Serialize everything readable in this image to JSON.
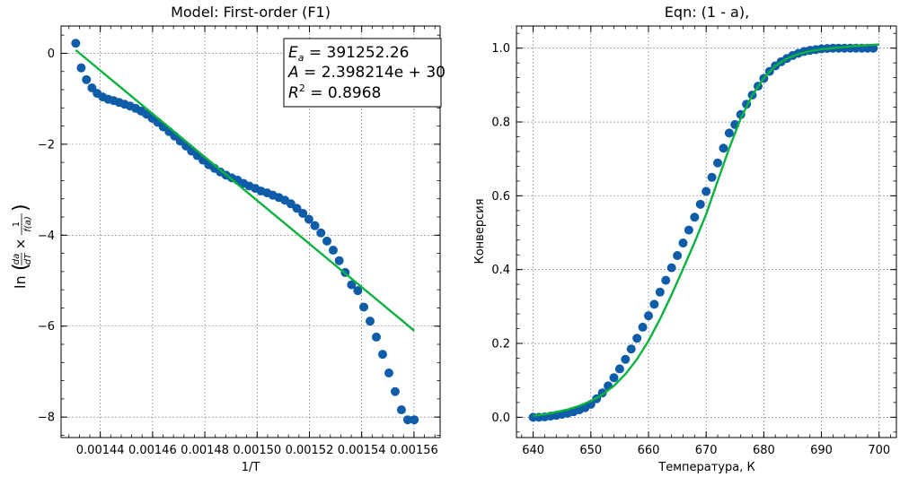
{
  "chart_data": [
    {
      "type": "scatter",
      "title": "Model: First-order (F1)",
      "xlabel": "1/T",
      "ylabel": "ln(da/dT × 1/f(a))",
      "xlim": [
        0.001425,
        0.00157
      ],
      "ylim": [
        -8.45,
        0.6
      ],
      "x_ticks": [
        "0.00144",
        "0.00146",
        "0.00148",
        "0.00150",
        "0.00152",
        "0.00154",
        "0.00156"
      ],
      "x_tick_values": [
        0.00144,
        0.00146,
        0.00148,
        0.0015,
        0.00152,
        0.00154,
        0.00156
      ],
      "y_ticks": [
        "0",
        "−2",
        "−4",
        "−6",
        "−8"
      ],
      "y_tick_values": [
        0,
        -2,
        -4,
        -6,
        -8
      ],
      "grid": true,
      "annotation": {
        "line1_var": "E",
        "line1_sub": "a",
        "line1_value": " = 391252.26",
        "line2_var": "A",
        "line2_value": " = 2.398214e + 30",
        "line3_var": "R",
        "line3_sup": "2",
        "line3_value": " = 0.8968",
        "position": "top-right"
      },
      "series": [
        {
          "kind": "points",
          "color": "#0f5ca8",
          "x": [
            0.0014306,
            0.0014327,
            0.0014347,
            0.0014368,
            0.0014388,
            0.0014409,
            0.001443,
            0.0014451,
            0.0014472,
            0.0014493,
            0.0014514,
            0.0014535,
            0.0014556,
            0.0014577,
            0.0014599,
            0.001462,
            0.0014641,
            0.0014663,
            0.0014684,
            0.0014706,
            0.0014728,
            0.0014749,
            0.0014771,
            0.0014793,
            0.0014815,
            0.0014837,
            0.0014859,
            0.0014881,
            0.0014903,
            0.0014925,
            0.0014948,
            0.001497,
            0.0014993,
            0.0015015,
            0.0015038,
            0.001506,
            0.0015083,
            0.0015106,
            0.0015129,
            0.0015152,
            0.0015175,
            0.0015198,
            0.0015221,
            0.0015244,
            0.0015267,
            0.0015291,
            0.0015314,
            0.0015337,
            0.0015361,
            0.0015385,
            0.0015408,
            0.0015432,
            0.0015456,
            0.001548,
            0.0015504,
            0.0015528,
            0.0015552,
            0.0015576,
            0.0015601
          ],
          "y": [
            0.22,
            -0.32,
            -0.58,
            -0.76,
            -0.88,
            -0.96,
            -1.01,
            -1.04,
            -1.08,
            -1.12,
            -1.16,
            -1.21,
            -1.27,
            -1.34,
            -1.43,
            -1.52,
            -1.62,
            -1.72,
            -1.82,
            -1.93,
            -2.04,
            -2.15,
            -2.25,
            -2.35,
            -2.45,
            -2.53,
            -2.61,
            -2.68,
            -2.74,
            -2.79,
            -2.86,
            -2.92,
            -2.97,
            -3.03,
            -3.07,
            -3.12,
            -3.17,
            -3.23,
            -3.31,
            -3.41,
            -3.52,
            -3.65,
            -3.79,
            -3.95,
            -4.13,
            -4.33,
            -4.56,
            -4.82,
            -5.09,
            -5.22,
            -5.58,
            -5.89,
            -6.24,
            -6.62,
            -7.03,
            -7.44,
            -7.84,
            -8.06,
            -8.06
          ]
        },
        {
          "kind": "line",
          "color": "#0bb23f",
          "x": [
            0.0014306,
            0.0015601
          ],
          "y": [
            0.07,
            -6.1
          ]
        }
      ]
    },
    {
      "type": "scatter",
      "title": "Eqn: (1 - a),",
      "xlabel": "Температура, К",
      "ylabel": "Конверсия",
      "xlim": [
        637.1,
        703.0
      ],
      "ylim": [
        -0.055,
        1.06
      ],
      "x_ticks": [
        "640",
        "650",
        "660",
        "670",
        "680",
        "690",
        "700"
      ],
      "x_tick_values": [
        640,
        650,
        660,
        670,
        680,
        690,
        700
      ],
      "y_ticks": [
        "0.0",
        "0.2",
        "0.4",
        "0.6",
        "0.8",
        "1.0"
      ],
      "y_tick_values": [
        0.0,
        0.2,
        0.4,
        0.6,
        0.8,
        1.0
      ],
      "grid": true,
      "series": [
        {
          "kind": "points",
          "color": "#0f5ca8",
          "x": [
            640,
            641,
            642,
            643,
            644,
            645,
            646,
            647,
            648,
            649,
            650,
            651,
            652,
            653,
            654,
            655,
            656,
            657,
            658,
            659,
            660,
            661,
            662,
            663,
            664,
            665,
            666,
            667,
            668,
            669,
            670,
            671,
            672,
            673,
            674,
            675,
            676,
            677,
            678,
            679,
            680,
            681,
            682,
            683,
            684,
            685,
            686,
            687,
            688,
            689,
            690,
            691,
            692,
            693,
            694,
            695,
            696,
            697,
            698,
            699
          ],
          "y": [
            0.0,
            0.0,
            0.001,
            0.003,
            0.005,
            0.008,
            0.011,
            0.015,
            0.02,
            0.026,
            0.035,
            0.05,
            0.066,
            0.085,
            0.107,
            0.131,
            0.157,
            0.185,
            0.214,
            0.244,
            0.275,
            0.306,
            0.339,
            0.371,
            0.405,
            0.438,
            0.472,
            0.507,
            0.542,
            0.577,
            0.612,
            0.65,
            0.689,
            0.729,
            0.77,
            0.793,
            0.82,
            0.848,
            0.873,
            0.897,
            0.918,
            0.937,
            0.952,
            0.963,
            0.972,
            0.98,
            0.986,
            0.991,
            0.994,
            0.996,
            0.998,
            0.999,
            1.0,
            1.0,
            1.0,
            1.0,
            1.0,
            1.0,
            1.0,
            1.0
          ]
        },
        {
          "kind": "line",
          "color": "#0bb23f",
          "x": [
            640,
            642,
            644,
            646,
            648,
            650,
            652,
            654,
            656,
            658,
            660,
            662,
            664,
            666,
            668,
            670,
            672,
            674,
            676,
            678,
            680,
            682,
            684,
            686,
            688,
            690,
            692,
            694,
            696,
            698,
            700
          ],
          "y": [
            0.004,
            0.008,
            0.014,
            0.021,
            0.031,
            0.044,
            0.061,
            0.085,
            0.117,
            0.157,
            0.207,
            0.266,
            0.332,
            0.402,
            0.474,
            0.55,
            0.64,
            0.729,
            0.81,
            0.872,
            0.919,
            0.952,
            0.972,
            0.984,
            0.992,
            0.997,
            1.0,
            1.003,
            1.006,
            1.008,
            1.01
          ]
        }
      ]
    }
  ]
}
